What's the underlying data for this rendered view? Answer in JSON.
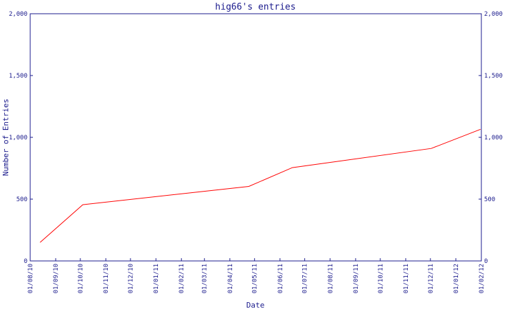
{
  "chart_data": {
    "type": "line",
    "title": "hig66's entries",
    "xlabel": "Date",
    "ylabel": "Number of Entries",
    "ylim": [
      0,
      2000
    ],
    "y_ticks": [
      0,
      500,
      1000,
      1500,
      2000
    ],
    "y_tick_labels": [
      "0",
      "500",
      "1,000",
      "1,500",
      "2,000"
    ],
    "x_ticks": [
      "2010-08-01",
      "2010-09-01",
      "2010-10-01",
      "2010-11-01",
      "2010-12-01",
      "2011-01-01",
      "2011-02-01",
      "2011-03-01",
      "2011-04-01",
      "2011-05-01",
      "2011-06-01",
      "2011-07-01",
      "2011-08-01",
      "2011-09-01",
      "2011-10-01",
      "2011-11-01",
      "2011-12-01",
      "2012-01-01",
      "2012-02-01"
    ],
    "x_tick_labels": [
      "01/08/10",
      "01/09/10",
      "01/10/10",
      "01/11/10",
      "01/12/10",
      "01/01/11",
      "01/02/11",
      "01/03/11",
      "01/04/11",
      "01/05/11",
      "01/06/11",
      "01/07/11",
      "01/08/11",
      "01/09/11",
      "01/10/11",
      "01/11/11",
      "01/12/11",
      "01/01/12",
      "01/02/12"
    ],
    "xlim": [
      "2010-08-01",
      "2012-02-01"
    ],
    "grid": false,
    "y_axis_mirrored_right": true,
    "colors": {
      "axis": "#1a1a8c",
      "line": "#ff0000"
    },
    "series": [
      {
        "x": [
          "2010-08-13",
          "2010-10-04",
          "2011-04-24",
          "2011-06-16",
          "2011-12-02",
          "2012-01-31"
        ],
        "y": [
          150,
          455,
          603,
          755,
          910,
          1065
        ]
      }
    ]
  }
}
